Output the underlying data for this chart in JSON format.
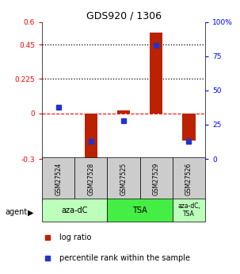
{
  "title": "GDS920 / 1306",
  "samples": [
    "GSM27524",
    "GSM27528",
    "GSM27525",
    "GSM27529",
    "GSM27526"
  ],
  "log_ratios": [
    0.0,
    -0.32,
    0.02,
    0.53,
    -0.18
  ],
  "percentile_ranks_pct": [
    38,
    13,
    28,
    83,
    13
  ],
  "bar_color": "#bb2200",
  "dot_color": "#2233cc",
  "ylim_left": [
    -0.3,
    0.6
  ],
  "ylim_right": [
    0,
    100
  ],
  "yticks_left": [
    -0.3,
    0.0,
    0.225,
    0.45,
    0.6
  ],
  "yticks_left_labels": [
    "-0.3",
    "0",
    "0.225",
    "0.45",
    "0.6"
  ],
  "yticks_right": [
    0,
    25,
    50,
    75,
    100
  ],
  "yticks_right_labels": [
    "0",
    "25",
    "50",
    "75",
    "100%"
  ],
  "hlines": [
    0.225,
    0.45
  ],
  "agent_groups": [
    {
      "label": "aza-dC",
      "cols": [
        0,
        1
      ],
      "color": "#bbffbb"
    },
    {
      "label": "TSA",
      "cols": [
        2,
        3
      ],
      "color": "#44ee44"
    },
    {
      "label": "aza-dC,\nTSA",
      "cols": [
        4
      ],
      "color": "#bbffbb"
    }
  ],
  "sample_bg_color": "#cccccc",
  "legend_log_ratio": "log ratio",
  "legend_pct": "percentile rank within the sample"
}
